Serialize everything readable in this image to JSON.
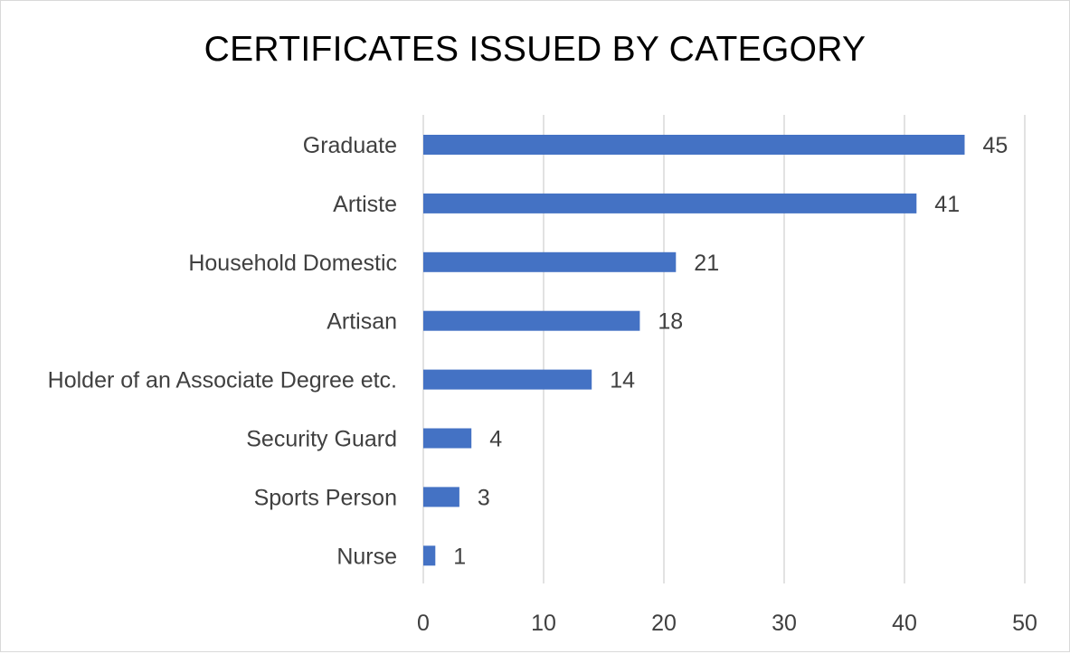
{
  "chart_data": {
    "type": "bar",
    "orientation": "horizontal",
    "title": "CERTIFICATES ISSUED BY CATEGORY",
    "xlabel": "",
    "ylabel": "",
    "categories": [
      "Graduate",
      "Artiste",
      "Household Domestic",
      "Artisan",
      "Holder of an Associate Degree etc.",
      "Security Guard",
      "Sports Person",
      "Nurse"
    ],
    "values": [
      45,
      41,
      21,
      18,
      14,
      4,
      3,
      1
    ],
    "xlim": [
      0,
      50
    ],
    "xticks": [
      "0",
      "10",
      "20",
      "30",
      "40",
      "50"
    ],
    "grid": true,
    "legend": "none",
    "data_labels": true,
    "bar_color": "#4472c4",
    "grid_color": "#d9d9d9"
  }
}
